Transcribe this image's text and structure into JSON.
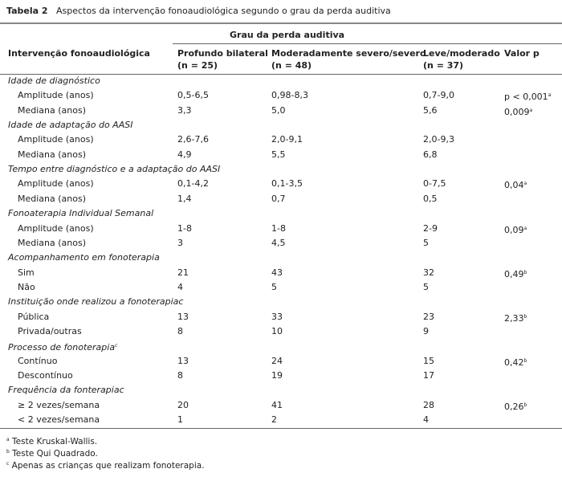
{
  "title": {
    "label": "Tabela 2",
    "text": "Aspectos da intervenção fonoaudiológica segundo o grau da perda auditiva"
  },
  "table": {
    "group_header": "Grau da perda auditiva",
    "columns": [
      {
        "name": "Intervenção fonoaudiológica"
      },
      {
        "name": "Profundo bilateral",
        "n": "(n = 25)"
      },
      {
        "name": "Moderadamente severo/severo",
        "n": "(n = 48)"
      },
      {
        "name": "Leve/moderado",
        "n": "(n = 37)"
      },
      {
        "name": "Valor p"
      }
    ],
    "sections": [
      {
        "heading": "Idade de diagnóstico",
        "rows": [
          {
            "cells": [
              "Amplitude (anos)",
              "0,5-6,5",
              "0,98-8,3",
              "0,7-9,0",
              "p < 0,001"
            ],
            "note": "a"
          },
          {
            "cells": [
              "Mediana (anos)",
              "3,3",
              "5,0",
              "5,6",
              "0,009"
            ],
            "note": "a"
          }
        ]
      },
      {
        "heading": "Idade de adaptação do AASI",
        "rows": [
          {
            "cells": [
              "Amplitude (anos)",
              "2,6-7,6",
              "2,0-9,1",
              "2,0-9,3"
            ]
          },
          {
            "cells": [
              "Mediana (anos)",
              "4,9",
              "5,5",
              "6,8"
            ]
          }
        ]
      },
      {
        "heading": "Tempo entre diagnóstico e a adaptação do AASI",
        "rows": [
          {
            "cells": [
              "Amplitude (anos)",
              "0,1-4,2",
              "0,1-3,5",
              "0-7,5",
              "0,04"
            ],
            "note": "a"
          },
          {
            "cells": [
              "Mediana (anos)",
              "1,4",
              "0,7",
              "0,5"
            ]
          }
        ]
      },
      {
        "heading": "Fonoaterapia Individual Semanal",
        "rows": [
          {
            "cells": [
              "Amplitude (anos)",
              "1-8",
              "1-8",
              "2-9",
              "0,09"
            ],
            "note": "a"
          },
          {
            "cells": [
              "Mediana (anos)",
              "3",
              "4,5",
              "5"
            ]
          }
        ]
      },
      {
        "heading": "Acompanhamento em fonoterapia",
        "rows": [
          {
            "cells": [
              "Sim",
              "21",
              "43",
              "32",
              "0,49"
            ],
            "note": "b"
          },
          {
            "cells": [
              "Não",
              "4",
              "5",
              "5"
            ]
          }
        ]
      },
      {
        "heading": "Instituição onde realizou a fonoterapiac",
        "rows": [
          {
            "cells": [
              "Pública",
              "13",
              "33",
              "23",
              "2,33"
            ],
            "note": "b"
          },
          {
            "cells": [
              "Privada/outras",
              "8",
              "10",
              "9"
            ]
          }
        ]
      },
      {
        "heading": "Processo de fonoterapia",
        "note": "c",
        "rows": [
          {
            "cells": [
              "Contínuo",
              "13",
              "24",
              "15",
              "0,42"
            ],
            "note": "b"
          },
          {
            "cells": [
              "Descontínuo",
              "8",
              "19",
              "17"
            ]
          }
        ]
      },
      {
        "heading": "Frequência da fonterapiac",
        "rows": [
          {
            "cells": [
              "≥ 2 vezes/semana",
              "20",
              "41",
              "28",
              "0,26"
            ],
            "note": "b"
          },
          {
            "cells": [
              "< 2 vezes/semana",
              "1",
              "2",
              "4"
            ]
          }
        ]
      }
    ]
  },
  "footnotes": [
    {
      "mark": "a",
      "text": "Teste Kruskal-Wallis."
    },
    {
      "mark": "b",
      "text": "Teste Qui Quadrado."
    },
    {
      "mark": "c",
      "text": "Apenas as crianças que realizam fonoterapia."
    }
  ]
}
